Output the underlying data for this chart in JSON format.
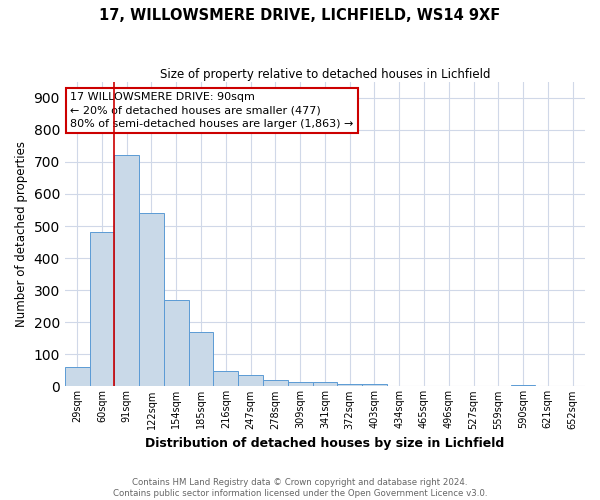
{
  "title": "17, WILLOWSMERE DRIVE, LICHFIELD, WS14 9XF",
  "subtitle": "Size of property relative to detached houses in Lichfield",
  "xlabel": "Distribution of detached houses by size in Lichfield",
  "ylabel": "Number of detached properties",
  "categories": [
    "29sqm",
    "60sqm",
    "91sqm",
    "122sqm",
    "154sqm",
    "185sqm",
    "216sqm",
    "247sqm",
    "278sqm",
    "309sqm",
    "341sqm",
    "372sqm",
    "403sqm",
    "434sqm",
    "465sqm",
    "496sqm",
    "527sqm",
    "559sqm",
    "590sqm",
    "621sqm",
    "652sqm"
  ],
  "values": [
    62,
    480,
    720,
    540,
    270,
    170,
    48,
    35,
    20,
    15,
    13,
    8,
    7,
    0,
    0,
    0,
    0,
    0,
    5,
    0,
    0
  ],
  "bar_color": "#c9d9e8",
  "bar_edge_color": "#5b9bd5",
  "red_line_index": 2,
  "red_line_color": "#cc0000",
  "ylim": [
    0,
    950
  ],
  "yticks": [
    0,
    100,
    200,
    300,
    400,
    500,
    600,
    700,
    800,
    900
  ],
  "annotation_text": "17 WILLOWSMERE DRIVE: 90sqm\n← 20% of detached houses are smaller (477)\n80% of semi-detached houses are larger (1,863) →",
  "annotation_box_color": "#ffffff",
  "annotation_box_edge": "#cc0000",
  "footer_line1": "Contains HM Land Registry data © Crown copyright and database right 2024.",
  "footer_line2": "Contains public sector information licensed under the Open Government Licence v3.0.",
  "background_color": "#ffffff",
  "grid_color": "#d0d8e8"
}
